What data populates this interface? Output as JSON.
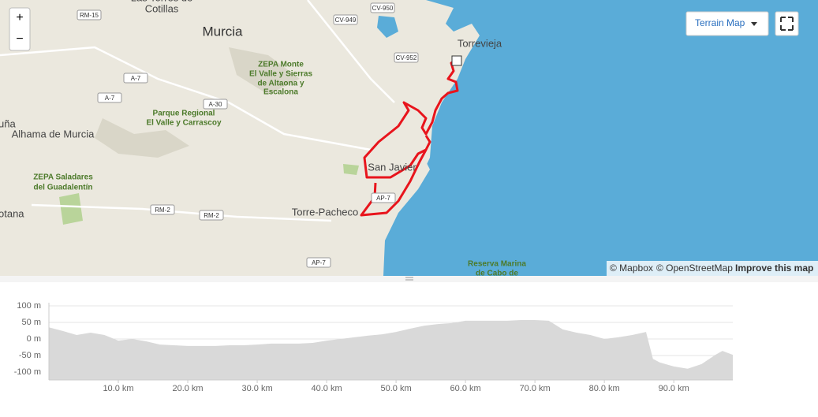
{
  "map": {
    "zoom_in": "+",
    "zoom_out": "−",
    "map_type": "Terrain Map",
    "attribution": [
      "© Mapbox",
      "© OpenStreetMap",
      "Improve this map"
    ],
    "places": [
      "Las Torres de",
      "Cotillas",
      "Murcia",
      "Alhama de Murcia",
      "Torrevieja",
      "San Javier",
      "Torre-Pacheco",
      "otana",
      "uña"
    ],
    "parks": [
      "ZEPA Monte",
      "El Valle y Sierras",
      "de Altaona y",
      "Escalona",
      "Parque Regional",
      "El Valle y Carrascoy",
      "ZEPA Saladares",
      "del Guadalentín",
      "Reserva Marina",
      "de Cabo de"
    ],
    "roads": [
      "RM-15",
      "A-7",
      "A-7",
      "A-30",
      "CV-949",
      "CV-950",
      "CV-952",
      "RM-2",
      "RM-2",
      "AP-7",
      "AP-7"
    ]
  },
  "chart_data": {
    "type": "area",
    "color": "#d9d9d9",
    "x": [
      0,
      2,
      4,
      6,
      8,
      10,
      12,
      14,
      16,
      18,
      20,
      22,
      24,
      26,
      28,
      30,
      32,
      34,
      36,
      38,
      40,
      42,
      44,
      46,
      48,
      50,
      52,
      54,
      56,
      58,
      60,
      62,
      64,
      66,
      68,
      70,
      72,
      74,
      76,
      78,
      80,
      82,
      84,
      86,
      87,
      88,
      90,
      92,
      94,
      96,
      97,
      98.5
    ],
    "values": [
      35,
      24,
      12,
      19,
      12,
      -5,
      0,
      -7,
      -17,
      -19,
      -21,
      -21,
      -21,
      -19,
      -19,
      -17,
      -14,
      -14,
      -14,
      -12,
      -5,
      0,
      5,
      10,
      14,
      21,
      31,
      40,
      45,
      48,
      55,
      55,
      55,
      55,
      57,
      57,
      55,
      29,
      19,
      12,
      0,
      5,
      12,
      21,
      -60,
      -71,
      -83,
      -90,
      -76,
      -48,
      -36,
      -48
    ],
    "xlim": [
      0,
      98.5
    ],
    "ylim": [
      -100,
      100
    ],
    "xticks": [
      {
        "value": 10,
        "label": "10.0 km"
      },
      {
        "value": 20,
        "label": "20.0 km"
      },
      {
        "value": 30,
        "label": "30.0 km"
      },
      {
        "value": 40,
        "label": "40.0 km"
      },
      {
        "value": 50,
        "label": "50.0 km"
      },
      {
        "value": 60,
        "label": "60.0 km"
      },
      {
        "value": 70,
        "label": "70.0 km"
      },
      {
        "value": 80,
        "label": "80.0 km"
      },
      {
        "value": 90,
        "label": "90.0 km"
      }
    ],
    "yticks": [
      {
        "value": 100,
        "label": "100 m"
      },
      {
        "value": 50,
        "label": "50 m"
      },
      {
        "value": 0,
        "label": "0 m"
      },
      {
        "value": -50,
        "label": "-50 m"
      },
      {
        "value": -100,
        "label": "-100 m"
      }
    ],
    "grid": true
  }
}
